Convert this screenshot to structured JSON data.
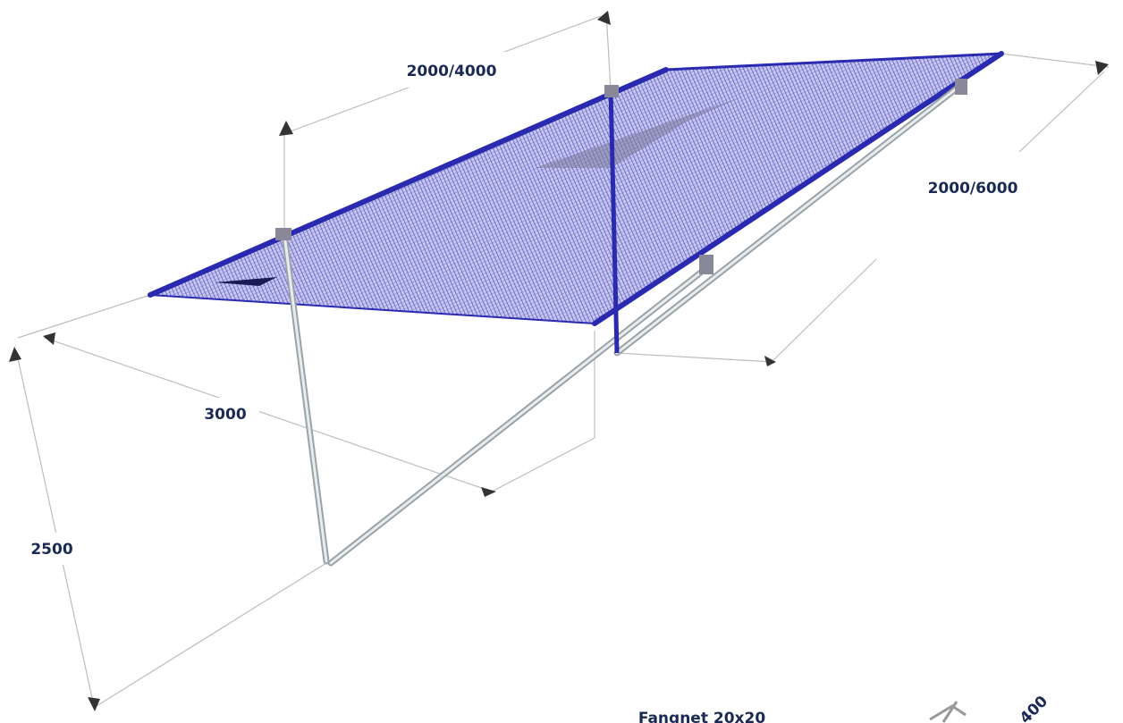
{
  "dimensions": {
    "top_width": "2000/4000",
    "length": "2000/6000",
    "depth": "3000",
    "height": "2500",
    "bracket": "400"
  },
  "caption": "Fangnet 20x20"
}
